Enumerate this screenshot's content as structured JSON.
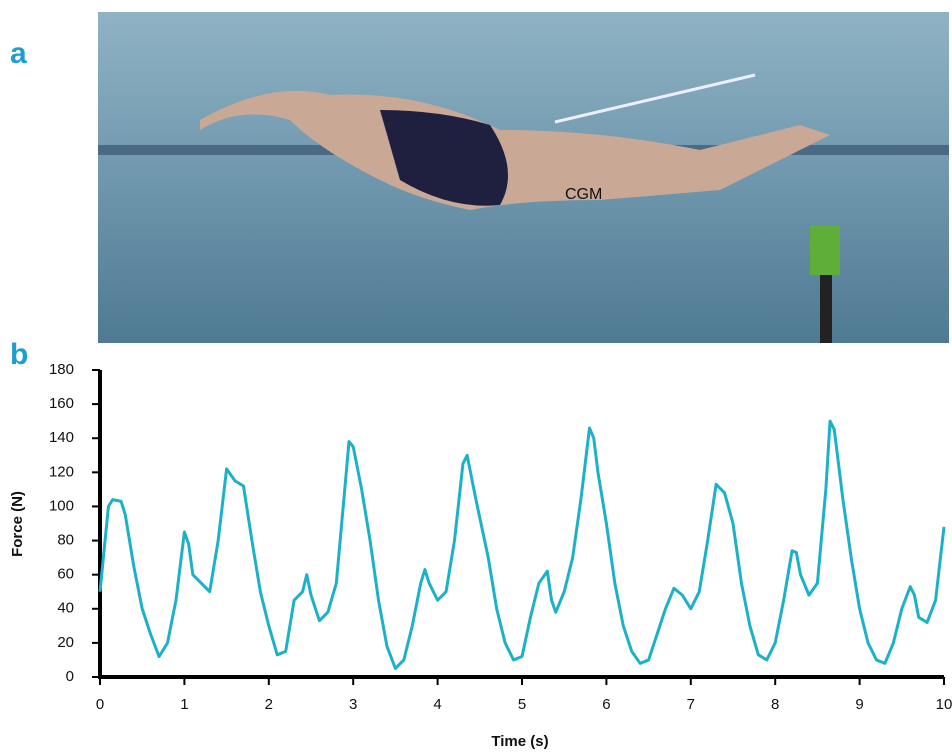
{
  "panel_labels": [
    "a",
    "b"
  ],
  "photo": {
    "label": "CGM"
  },
  "chart_data": {
    "type": "line",
    "xlabel": "Time (s)",
    "ylabel": "Force (N)",
    "x": [
      0,
      0.05,
      0.1,
      0.15,
      0.25,
      0.3,
      0.4,
      0.5,
      0.6,
      0.7,
      0.8,
      0.9,
      0.95,
      1.0,
      1.05,
      1.1,
      1.2,
      1.3,
      1.4,
      1.5,
      1.6,
      1.7,
      1.8,
      1.9,
      2.0,
      2.1,
      2.2,
      2.3,
      2.4,
      2.45,
      2.5,
      2.6,
      2.7,
      2.8,
      2.9,
      2.95,
      3.0,
      3.1,
      3.2,
      3.3,
      3.4,
      3.5,
      3.6,
      3.7,
      3.8,
      3.85,
      3.9,
      4.0,
      4.1,
      4.2,
      4.3,
      4.35,
      4.45,
      4.6,
      4.7,
      4.8,
      4.9,
      5.0,
      5.1,
      5.2,
      5.3,
      5.35,
      5.4,
      5.5,
      5.6,
      5.7,
      5.8,
      5.85,
      5.9,
      6.0,
      6.1,
      6.2,
      6.3,
      6.4,
      6.5,
      6.6,
      6.7,
      6.8,
      6.9,
      7.0,
      7.1,
      7.2,
      7.3,
      7.4,
      7.5,
      7.6,
      7.7,
      7.8,
      7.9,
      8.0,
      8.1,
      8.2,
      8.25,
      8.3,
      8.4,
      8.5,
      8.6,
      8.65,
      8.7,
      8.8,
      8.9,
      9.0,
      9.1,
      9.2,
      9.3,
      9.4,
      9.5,
      9.6,
      9.65,
      9.7,
      9.8,
      9.9,
      10.0
    ],
    "series": [
      {
        "color": "#1db1c8",
        "values": [
          50,
          75,
          100,
          104,
          103,
          95,
          65,
          40,
          25,
          12,
          20,
          45,
          65,
          85,
          78,
          60,
          55,
          50,
          80,
          122,
          115,
          112,
          80,
          50,
          30,
          13,
          15,
          45,
          50,
          60,
          48,
          33,
          38,
          55,
          110,
          138,
          135,
          110,
          80,
          45,
          18,
          5,
          10,
          30,
          55,
          63,
          55,
          45,
          50,
          80,
          125,
          130,
          105,
          70,
          40,
          20,
          10,
          12,
          35,
          55,
          62,
          45,
          38,
          50,
          70,
          105,
          146,
          140,
          120,
          90,
          55,
          30,
          15,
          8,
          10,
          25,
          40,
          52,
          48,
          40,
          50,
          80,
          113,
          108,
          90,
          55,
          30,
          13,
          10,
          20,
          45,
          74,
          73,
          60,
          48,
          55,
          110,
          150,
          145,
          105,
          70,
          40,
          20,
          10,
          8,
          20,
          40,
          53,
          48,
          35,
          32,
          45,
          88
        ]
      }
    ],
    "xlim": [
      0,
      10
    ],
    "xticks": [
      0,
      1,
      2,
      3,
      4,
      5,
      6,
      7,
      8,
      9,
      10
    ],
    "ylim": [
      0,
      180
    ],
    "yticks": [
      0,
      20,
      40,
      60,
      80,
      100,
      120,
      140,
      160,
      180
    ]
  }
}
